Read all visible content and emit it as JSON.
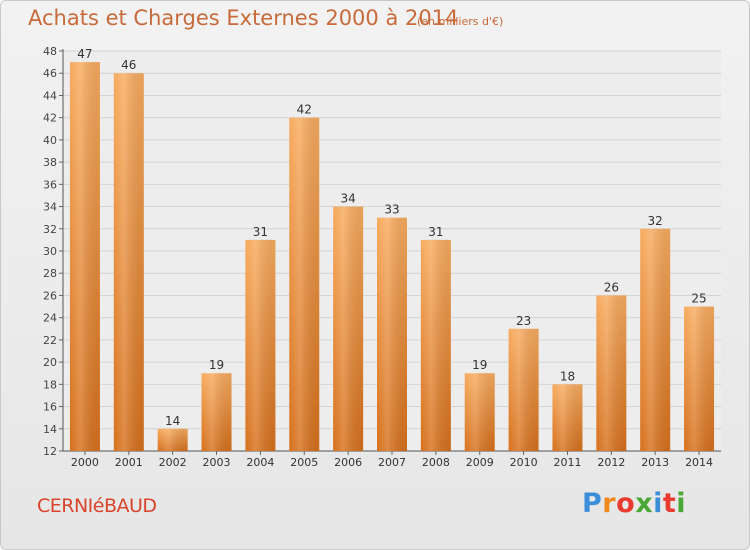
{
  "title": "Achats et Charges Externes 2000 à 2014",
  "subtitle": "(en milliers d'€)",
  "town": "CERNIéBAUD",
  "logo": {
    "text": "Proxiti",
    "colors": [
      "#3b8fd8",
      "#f08a1c",
      "#e83a2e",
      "#49a833",
      "#3b8fd8",
      "#e83a2e",
      "#49a833"
    ]
  },
  "colors": {
    "bar_light": "#f6a85a",
    "bar_dark": "#d9741f",
    "title": "#c86a3a",
    "town": "#d9442b"
  },
  "chart_data": {
    "type": "bar",
    "categories": [
      "2000",
      "2001",
      "2002",
      "2003",
      "2004",
      "2005",
      "2006",
      "2007",
      "2008",
      "2009",
      "2010",
      "2011",
      "2012",
      "2013",
      "2014"
    ],
    "values": [
      47,
      46,
      14,
      19,
      31,
      42,
      34,
      33,
      31,
      19,
      23,
      18,
      26,
      32,
      25
    ],
    "ylim": [
      12,
      48
    ],
    "yticks": [
      12,
      14,
      16,
      18,
      20,
      22,
      24,
      26,
      28,
      30,
      32,
      34,
      36,
      38,
      40,
      42,
      44,
      46,
      48
    ],
    "grid": true,
    "legend": "none"
  }
}
